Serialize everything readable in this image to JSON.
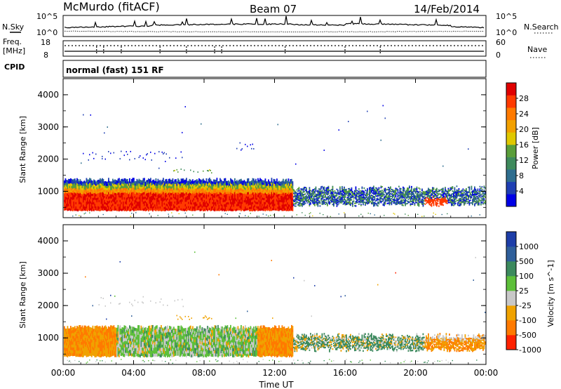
{
  "header": {
    "station": "McMurdo (fitACF)",
    "beam": "Beam 07",
    "date": "14/Feb/2014"
  },
  "noise_panel": {
    "left_label": "N.Sky",
    "right_label": "N.Search",
    "ytick_top": "10^5",
    "ytick_bottom": "10^0"
  },
  "freq_panel": {
    "left_label_1": "Freq.",
    "left_label_2": "[MHz]",
    "right_label": "Nave",
    "left_ticks": [
      "18",
      "8"
    ],
    "right_ticks": [
      "60",
      "0"
    ]
  },
  "cpid_panel": {
    "label": "CPID",
    "text": "normal (fast) 151 RF"
  },
  "chart_data": [
    {
      "type": "heatmap",
      "title": "",
      "xlabel": "",
      "ylabel": "Slant Range [km]",
      "x_ticks": [
        "00:00",
        "04:00",
        "08:00",
        "12:00",
        "16:00",
        "20:00",
        "00:00"
      ],
      "x_range_hours": [
        0,
        24
      ],
      "y_ticks": [
        "1000",
        "2000",
        "3000",
        "4000"
      ],
      "y_range_km": [
        180,
        4500
      ],
      "colorbar": {
        "label": "Power [dB]",
        "ticks": [
          "4",
          "8",
          "12",
          "16",
          "20",
          "24",
          "28"
        ],
        "range": [
          0,
          32
        ],
        "colors": [
          "#0000e6",
          "#1f3fb3",
          "#2f6e8f",
          "#3e8a5c",
          "#5a9e3a",
          "#e0c800",
          "#f2a000",
          "#ff7a00",
          "#ff3a00",
          "#e00000"
        ]
      },
      "echo_regions": [
        {
          "t": [
            0.0,
            13.0
          ],
          "r": [
            380,
            1300
          ],
          "level": "high"
        },
        {
          "t": [
            13.0,
            24.0
          ],
          "r": [
            500,
            1150
          ],
          "level": "medium"
        },
        {
          "t": [
            1.0,
            6.8
          ],
          "r": [
            1950,
            2250
          ],
          "level": "low"
        },
        {
          "t": [
            6.2,
            8.4
          ],
          "r": [
            1550,
            1700
          ],
          "level": "medium"
        },
        {
          "t": [
            9.8,
            10.8
          ],
          "r": [
            2250,
            2500
          ],
          "level": "low"
        }
      ]
    },
    {
      "type": "heatmap",
      "title": "",
      "xlabel": "Time UT",
      "ylabel": "Slant Range [km]",
      "x_ticks": [
        "00:00",
        "04:00",
        "08:00",
        "12:00",
        "16:00",
        "20:00",
        "00:00"
      ],
      "x_range_hours": [
        0,
        24
      ],
      "y_ticks": [
        "1000",
        "2000",
        "3000",
        "4000"
      ],
      "y_range_km": [
        180,
        4500
      ],
      "colorbar": {
        "label": "Velocity [m s^-1]",
        "ticks": [
          "1000",
          "500",
          "100",
          "25",
          "-25",
          "-100",
          "-500",
          "-1000"
        ],
        "colors": [
          "#1e3ea8",
          "#2f5f9a",
          "#3c8a5e",
          "#5dbf3a",
          "#c8c8c8",
          "#f0a200",
          "#ff7a00",
          "#ff2200"
        ]
      },
      "echo_regions": [
        {
          "t": [
            0.0,
            3.0
          ],
          "r": [
            400,
            1300
          ],
          "level": "negative"
        },
        {
          "t": [
            3.0,
            11.0
          ],
          "r": [
            400,
            1300
          ],
          "level": "mixed positive"
        },
        {
          "t": [
            11.0,
            13.0
          ],
          "r": [
            400,
            1200
          ],
          "level": "negative"
        },
        {
          "t": [
            13.0,
            20.5
          ],
          "r": [
            600,
            1000
          ],
          "level": "positive"
        },
        {
          "t": [
            20.5,
            24.0
          ],
          "r": [
            550,
            1150
          ],
          "level": "negative"
        }
      ]
    }
  ],
  "colors": {
    "axis": "#000000",
    "background": "#ffffff"
  }
}
